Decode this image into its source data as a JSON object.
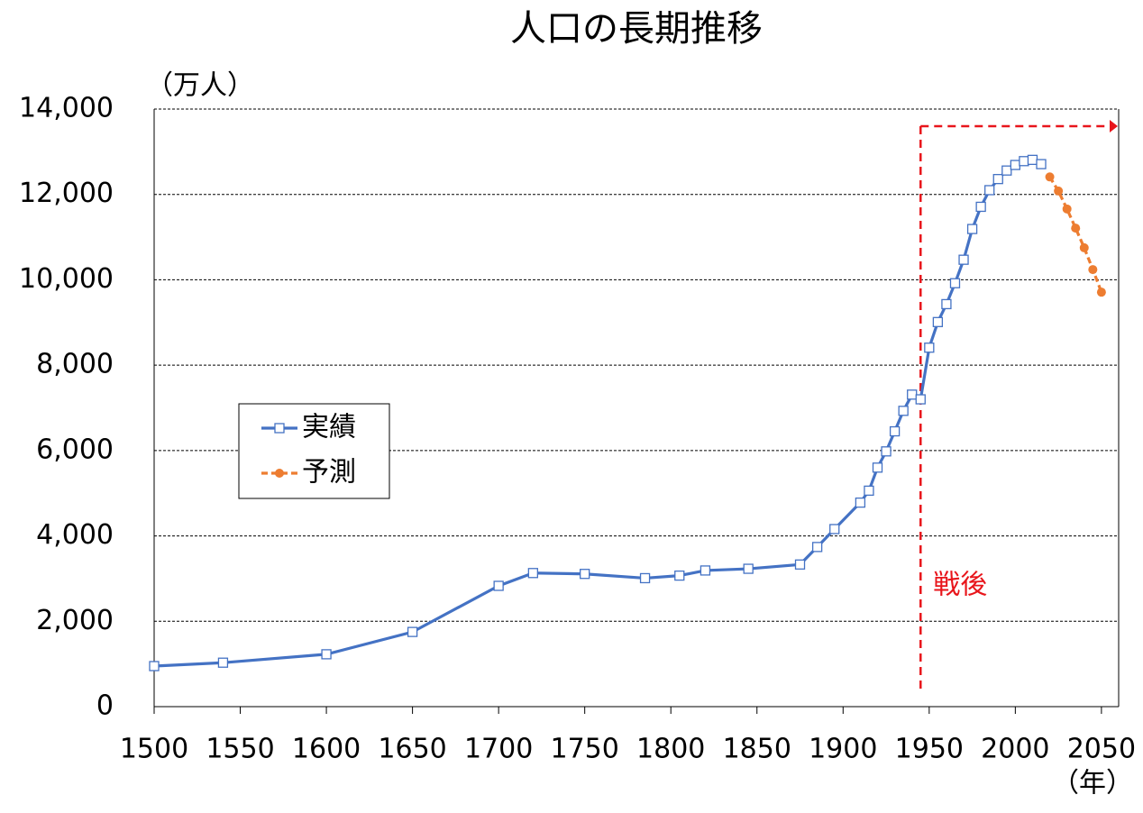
{
  "chart_data": {
    "type": "line",
    "title": "人口の長期推移",
    "ylabel": "（万人）",
    "xlabel": "（年）",
    "xlim": [
      1500,
      2060
    ],
    "xticks": [
      1500,
      1550,
      1600,
      1650,
      1700,
      1750,
      1800,
      1850,
      1900,
      1950,
      2000,
      2050
    ],
    "ylim": [
      0,
      14000
    ],
    "yticks": [
      0,
      {
        "value": 2000,
        "label": "2,000"
      },
      {
        "value": 4000,
        "label": "4,000"
      },
      {
        "value": 6000,
        "label": "6,000"
      },
      {
        "value": 8000,
        "label": "8,000"
      },
      {
        "value": 10000,
        "label": "10,000"
      },
      {
        "value": 12000,
        "label": "12,000"
      },
      {
        "value": 14000,
        "label": "14,000"
      }
    ],
    "grid": true,
    "legend": "center-left",
    "annotation": {
      "text": "戦後",
      "x": 1945,
      "color": "#e8151b"
    },
    "series": [
      {
        "name": "実績",
        "color": "#4472c4",
        "marker": "square",
        "x": [
          1500,
          1540,
          1600,
          1650,
          1700,
          1720,
          1750,
          1785,
          1805,
          1820,
          1845,
          1875,
          1885,
          1895,
          1910,
          1915,
          1920,
          1925,
          1930,
          1935,
          1940,
          1945,
          1950,
          1955,
          1960,
          1965,
          1970,
          1975,
          1980,
          1985,
          1990,
          1995,
          2000,
          2005,
          2010,
          2015
        ],
        "values": [
          950,
          1030,
          1227,
          1750,
          2830,
          3130,
          3110,
          3010,
          3070,
          3190,
          3230,
          3330,
          3740,
          4160,
          4780,
          5060,
          5600,
          5980,
          6450,
          6930,
          7310,
          7200,
          8410,
          9010,
          9430,
          9920,
          10470,
          11190,
          11710,
          12100,
          12360,
          12560,
          12690,
          12780,
          12810,
          12710
        ]
      },
      {
        "name": "予測",
        "color": "#ed7d31",
        "marker": "circle",
        "dashed": true,
        "x": [
          2020,
          2025,
          2030,
          2035,
          2040,
          2045,
          2050
        ],
        "values": [
          12410,
          12080,
          11660,
          11210,
          10750,
          10240,
          9710
        ]
      }
    ]
  }
}
